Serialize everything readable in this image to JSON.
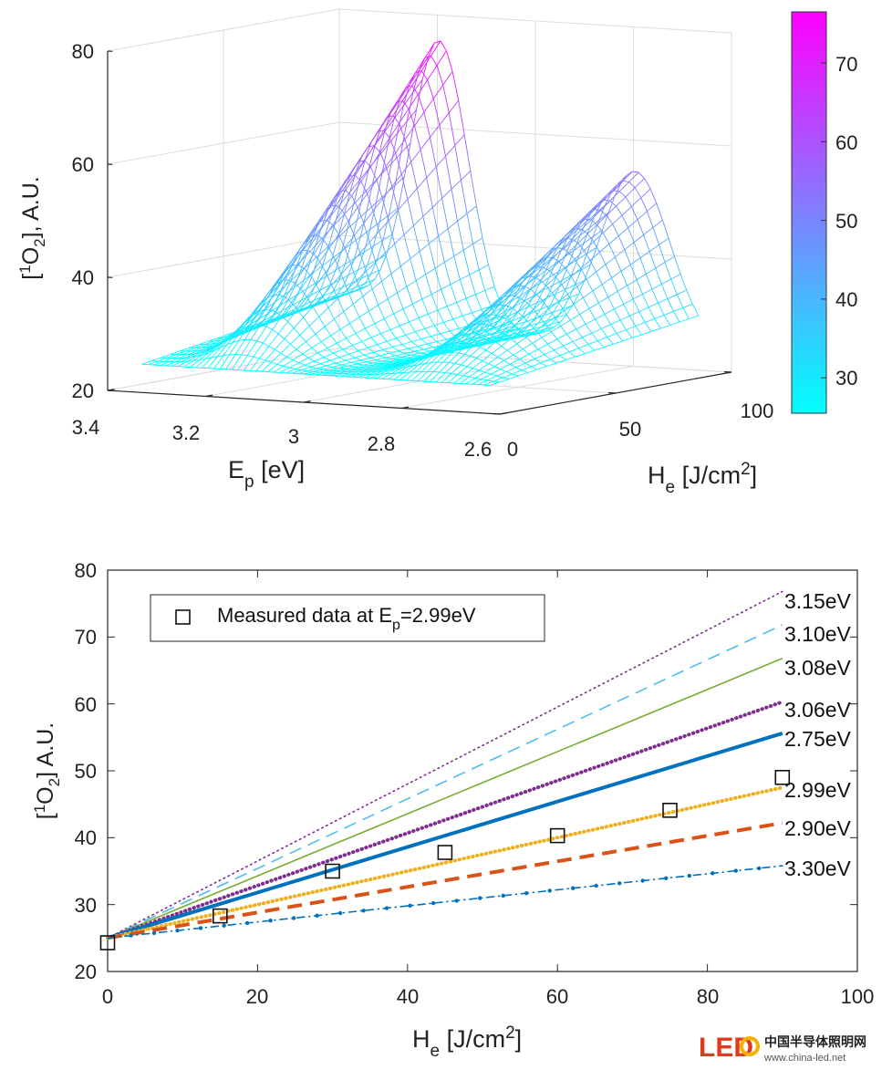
{
  "chart_data": [
    {
      "type": "surface",
      "zlabel_parts": [
        "[",
        "1",
        "O",
        "2",
        "], A.U."
      ],
      "xlabel_parts": [
        "E",
        "p",
        " [eV]"
      ],
      "ylabel_parts": [
        "H",
        "e",
        " [J/cm",
        "2",
        "]"
      ],
      "z_ticks": [
        "20",
        "40",
        "60",
        "80"
      ],
      "x_ticks": [
        "3.4",
        "3.2",
        "3",
        "2.8",
        "2.6"
      ],
      "y_ticks": [
        "0",
        "50",
        "100"
      ],
      "xlim": [
        2.6,
        3.4
      ],
      "ylim": [
        0,
        100
      ],
      "zlim": [
        20,
        80
      ],
      "colorbar": {
        "ticks": [
          "30",
          "40",
          "50",
          "60",
          "70"
        ],
        "range": [
          25.5,
          76.5
        ],
        "colormap": "cool"
      },
      "surface_peaks": [
        {
          "Ep": 3.15,
          "peak_at_He_90": 76.5
        },
        {
          "Ep": 2.75,
          "peak_at_He_90": 55.5
        }
      ]
    },
    {
      "type": "line",
      "xlabel_parts": [
        "H",
        "e",
        " [J/cm",
        "2",
        "]"
      ],
      "ylabel_parts": [
        "[",
        "1",
        "O",
        "2",
        "] A.U."
      ],
      "xlim": [
        0,
        100
      ],
      "ylim": [
        20,
        80
      ],
      "x_ticks": [
        "0",
        "20",
        "40",
        "60",
        "80",
        "100"
      ],
      "y_ticks": [
        "20",
        "30",
        "40",
        "50",
        "60",
        "70",
        "80"
      ],
      "legend": {
        "label_parts": [
          "Measured data at E",
          "p",
          "=2.99eV"
        ],
        "position": "top-left"
      },
      "series": [
        {
          "name": "3.15eV",
          "x": [
            0,
            90
          ],
          "y": [
            25.0,
            76.8
          ],
          "color": "#7E2F8E",
          "style": "dotted"
        },
        {
          "name": "3.10eV",
          "x": [
            0,
            90
          ],
          "y": [
            25.0,
            71.8
          ],
          "color": "#4DBEEE",
          "style": "dashed"
        },
        {
          "name": "3.08eV",
          "x": [
            0,
            90
          ],
          "y": [
            25.0,
            66.8
          ],
          "color": "#77AC30",
          "style": "solid"
        },
        {
          "name": "3.06eV",
          "x": [
            0,
            90
          ],
          "y": [
            25.0,
            60.3
          ],
          "color": "#7E2F8E",
          "style": "thick-dotted"
        },
        {
          "name": "2.75eV",
          "x": [
            0,
            90
          ],
          "y": [
            25.0,
            55.6
          ],
          "color": "#0072BD",
          "style": "thick-solid"
        },
        {
          "name": "2.99eV",
          "x": [
            0,
            90
          ],
          "y": [
            25.0,
            47.5
          ],
          "color": "#EDB120",
          "style": "thick-dotted"
        },
        {
          "name": "2.90eV",
          "x": [
            0,
            90
          ],
          "y": [
            25.0,
            42.2
          ],
          "color": "#D95319",
          "style": "thick-dashed"
        },
        {
          "name": "3.30eV",
          "x": [
            0,
            90
          ],
          "y": [
            25.0,
            35.8
          ],
          "color": "#0072BD",
          "style": "dash-dot"
        }
      ],
      "measured": {
        "x": [
          0,
          15,
          30,
          45,
          60,
          75,
          90
        ],
        "y": [
          24.3,
          28.3,
          35.0,
          37.8,
          40.3,
          44.1,
          49.0
        ]
      }
    }
  ],
  "watermark": {
    "brand": "LED",
    "cn": "中国半导体照明网",
    "url": "www.china-led.net"
  }
}
